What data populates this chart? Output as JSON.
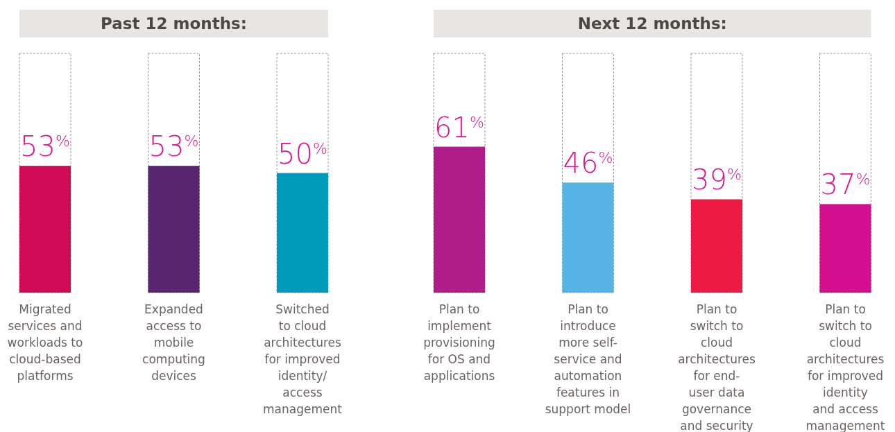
{
  "chart_data": [
    {
      "type": "bar",
      "title": "Past 12 months:",
      "categories": [
        "Migrated\nservices and\nworkloads to\ncloud-based\nplatforms",
        "Expanded\naccess to\nmobile\ncomputing\ndevices",
        "Switched\nto cloud\narchitectures\nfor improved\nidentity/\naccess\nmanagement"
      ],
      "values": [
        53,
        53,
        50
      ],
      "colors": [
        "#d10a57",
        "#58266e",
        "#009bbb"
      ],
      "value_labels": [
        "53%",
        "53%",
        "50%"
      ],
      "ylim": [
        0,
        100
      ]
    },
    {
      "type": "bar",
      "title": "Next 12 months:",
      "categories": [
        "Plan to\nimplement\nprovisioning\nfor OS and\napplications",
        "Plan to\nintroduce\nmore self-\nservice and\nautomation\nfeatures in\nsupport model",
        "Plan to\nswitch to\ncloud\narchitectures\nfor end-\nuser data\ngovernance\nand security",
        "Plan to\nswitch to\ncloud\narchitectures\nfor improved\nidentity\nand access\nmanagement"
      ],
      "values": [
        61,
        46,
        39,
        37
      ],
      "colors": [
        "#b01c8a",
        "#56b4e4",
        "#ec1a44",
        "#d10f8f"
      ],
      "value_labels": [
        "61%",
        "46%",
        "39%",
        "37%"
      ],
      "ylim": [
        0,
        100
      ]
    }
  ]
}
